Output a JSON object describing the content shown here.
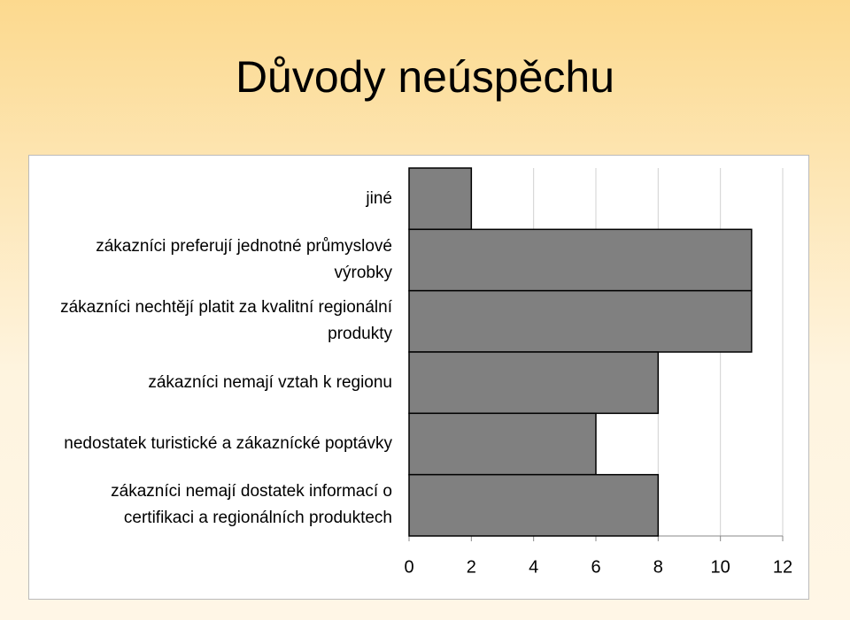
{
  "chart_data": {
    "type": "hbar",
    "title": "Důvody neúspěchu",
    "categories": [
      "jiné",
      "zákazníci preferují jednotné průmyslové výrobky",
      "zákazníci nechtějí platit za kvalitní regionální produkty",
      "zákazníci nemají vztah k regionu",
      "nedostatek turistické a zákaznícké poptávky",
      "zákazníci nemají dostatek informací o certifikaci a regionálních produktech"
    ],
    "values": [
      2,
      11,
      11,
      8,
      6,
      8
    ],
    "color": "#808080",
    "xlim": [
      0,
      12
    ],
    "xticks": [
      0,
      2,
      4,
      6,
      8,
      10,
      12
    ],
    "grid": true
  }
}
